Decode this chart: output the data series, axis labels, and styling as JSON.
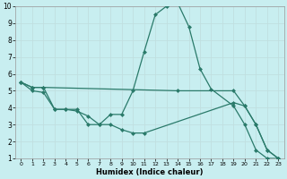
{
  "xlabel": "Humidex (Indice chaleur)",
  "bg_color": "#c8eef0",
  "grid_color": "#c0dfe0",
  "line_color": "#2a7a6a",
  "xlim": [
    -0.5,
    23.5
  ],
  "ylim": [
    1,
    10
  ],
  "xtick_labels": [
    "0",
    "1",
    "2",
    "3",
    "4",
    "5",
    "6",
    "7",
    "8",
    "9",
    "10",
    "11",
    "12",
    "13",
    "14",
    "15",
    "16",
    "17",
    "18",
    "19",
    "20",
    "21",
    "22",
    "23"
  ],
  "ytick_labels": [
    "1",
    "2",
    "3",
    "4",
    "5",
    "6",
    "7",
    "8",
    "9",
    "10"
  ],
  "line1_x": [
    0,
    1,
    2,
    14,
    19,
    20,
    21,
    22,
    23
  ],
  "line1_y": [
    5.5,
    5.2,
    5.2,
    5.0,
    5.0,
    4.1,
    3.0,
    1.5,
    1.0
  ],
  "line2_x": [
    0,
    1,
    2,
    3,
    4,
    5,
    6,
    7,
    8,
    9,
    10,
    11,
    12,
    13,
    14,
    15,
    16,
    17,
    19,
    20,
    21,
    22,
    23
  ],
  "line2_y": [
    5.5,
    5.2,
    5.2,
    3.9,
    3.9,
    3.9,
    3.0,
    3.0,
    3.6,
    3.6,
    5.0,
    7.3,
    9.5,
    10.0,
    10.2,
    8.8,
    6.3,
    5.1,
    4.1,
    3.0,
    1.5,
    1.0,
    1.0
  ],
  "line3_x": [
    0,
    1,
    2,
    3,
    4,
    5,
    6,
    7,
    8,
    9,
    10,
    11,
    19,
    20,
    21,
    22,
    23
  ],
  "line3_y": [
    5.5,
    5.0,
    4.9,
    3.9,
    3.9,
    3.8,
    3.5,
    3.0,
    3.0,
    2.7,
    2.5,
    2.5,
    4.3,
    4.1,
    3.0,
    1.5,
    1.0
  ]
}
